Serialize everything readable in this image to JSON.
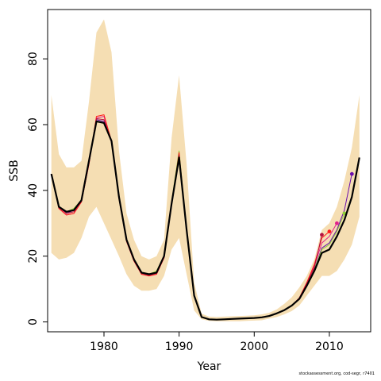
{
  "chart_data": {
    "type": "line",
    "xlabel": "Year",
    "ylabel": "SSB",
    "xlim": [
      1972.5,
      2015.5
    ],
    "ylim": [
      -3,
      95
    ],
    "xticks": [
      1980,
      1990,
      2000,
      2010
    ],
    "yticks": [
      0,
      20,
      40,
      60,
      80
    ],
    "band_color": "#f5deb3",
    "band": {
      "x": [
        1973,
        1974,
        1975,
        1976,
        1977,
        1978,
        1979,
        1980,
        1981,
        1982,
        1983,
        1984,
        1985,
        1986,
        1987,
        1988,
        1989,
        1990,
        1991,
        1992,
        1993,
        1994,
        1995,
        1996,
        1997,
        1998,
        1999,
        2000,
        2001,
        2002,
        2003,
        2004,
        2005,
        2006,
        2007,
        2008,
        2009,
        2010,
        2011,
        2012,
        2013,
        2014
      ],
      "upper": [
        69,
        51,
        47,
        47,
        49,
        67,
        88,
        92,
        82,
        52,
        33,
        25,
        20,
        19,
        20,
        25,
        56,
        75,
        48,
        12,
        2.5,
        1.6,
        1.5,
        1.6,
        1.7,
        1.8,
        1.9,
        2.0,
        2.3,
        2.8,
        3.8,
        5.5,
        7.5,
        10.5,
        14,
        19,
        28,
        30,
        35,
        43,
        53,
        69
      ],
      "lower": [
        21,
        19,
        19.5,
        21,
        25.5,
        32,
        35,
        30,
        25,
        20,
        14.5,
        11,
        9.5,
        9.5,
        10,
        14,
        22,
        25.5,
        14.5,
        3.5,
        0.8,
        0.3,
        0.2,
        0.2,
        0.2,
        0.2,
        0.3,
        0.4,
        0.5,
        1.0,
        1.5,
        2.3,
        3.3,
        5,
        8,
        11,
        14,
        14,
        15.5,
        19,
        23.5,
        32
      ]
    },
    "series": [
      {
        "color": "#000000",
        "width": 2.2,
        "dot": false,
        "x": [
          1973,
          1974,
          1975,
          1976,
          1977,
          1978,
          1979,
          1980,
          1981,
          1982,
          1983,
          1984,
          1985,
          1986,
          1987,
          1988,
          1989,
          1990,
          1991,
          1992,
          1993,
          1994,
          1995,
          1996,
          1997,
          1998,
          1999,
          2000,
          2001,
          2002,
          2003,
          2004,
          2005,
          2006,
          2007,
          2008,
          2009,
          2010,
          2011,
          2012,
          2013,
          2014
        ],
        "y": [
          45,
          35,
          33.5,
          34,
          37,
          49,
          61,
          60.5,
          55,
          38,
          25,
          19,
          15,
          14.5,
          15,
          20,
          36,
          50,
          28,
          8,
          1.5,
          0.8,
          0.7,
          0.8,
          0.9,
          1.0,
          1.1,
          1.2,
          1.4,
          1.8,
          2.6,
          3.6,
          5.0,
          7.0,
          11,
          15.5,
          21,
          22,
          26,
          31,
          38,
          50
        ]
      },
      {
        "color": "#6a0dad",
        "width": 1,
        "dot": true,
        "x": [
          1973,
          1974,
          1975,
          1976,
          1977,
          1978,
          1979,
          1980,
          1981,
          1982,
          1983,
          1984,
          1985,
          1986,
          1987,
          1988,
          1989,
          1990,
          1991,
          1992,
          1993,
          1994,
          1995,
          1996,
          1997,
          1998,
          1999,
          2000,
          2001,
          2002,
          2003,
          2004,
          2005,
          2006,
          2007,
          2008,
          2009,
          2010,
          2011,
          2012,
          2013
        ],
        "y": [
          45,
          35,
          33,
          34,
          37,
          49,
          61.5,
          61,
          55,
          38,
          25,
          19,
          15,
          14.5,
          15,
          20,
          36,
          50.5,
          28,
          8,
          1.5,
          0.8,
          0.7,
          0.8,
          0.9,
          1.0,
          1.1,
          1.2,
          1.4,
          1.8,
          2.6,
          3.6,
          5.0,
          7.2,
          11.5,
          16,
          22.5,
          24,
          28,
          34,
          45
        ]
      },
      {
        "color": "#8fce3a",
        "width": 1,
        "dot": true,
        "x": [
          1973,
          1974,
          1975,
          1976,
          1977,
          1978,
          1979,
          1980,
          1981,
          1982,
          1983,
          1984,
          1985,
          1986,
          1987,
          1988,
          1989,
          1990,
          1991,
          1992,
          1993,
          1994,
          1995,
          1996,
          1997,
          1998,
          1999,
          2000,
          2001,
          2002,
          2003,
          2004,
          2005,
          2006,
          2007,
          2008,
          2009,
          2010,
          2011,
          2012
        ],
        "y": [
          45,
          35,
          33.5,
          34.5,
          37,
          49,
          61,
          60.5,
          55,
          38,
          25,
          19,
          15,
          14.5,
          15.5,
          20,
          36.5,
          52,
          28,
          8,
          1.5,
          0.8,
          0.7,
          0.8,
          0.9,
          1.0,
          1.1,
          1.2,
          1.4,
          1.8,
          2.6,
          3.6,
          5.0,
          7.2,
          11.5,
          16,
          22,
          23.5,
          27.5,
          33
        ]
      },
      {
        "color": "#e0218a",
        "width": 1,
        "dot": true,
        "x": [
          1973,
          1974,
          1975,
          1976,
          1977,
          1978,
          1979,
          1980,
          1981,
          1982,
          1983,
          1984,
          1985,
          1986,
          1987,
          1988,
          1989,
          1990,
          1991,
          1992,
          1993,
          1994,
          1995,
          1996,
          1997,
          1998,
          1999,
          2000,
          2001,
          2002,
          2003,
          2004,
          2005,
          2006,
          2007,
          2008,
          2009,
          2010,
          2011
        ],
        "y": [
          45,
          34.5,
          32.5,
          33,
          36.5,
          48,
          62,
          62.5,
          54.5,
          37.5,
          24.5,
          18.5,
          14.5,
          14,
          14.5,
          19.5,
          35.5,
          51,
          27.5,
          8,
          1.5,
          0.8,
          0.7,
          0.8,
          0.9,
          1.0,
          1.1,
          1.2,
          1.4,
          1.8,
          2.6,
          3.6,
          5.0,
          7.3,
          11.8,
          17,
          24,
          26,
          30
        ]
      },
      {
        "color": "#ff1a1a",
        "width": 1,
        "dot": true,
        "x": [
          1973,
          1974,
          1975,
          1976,
          1977,
          1978,
          1979,
          1980,
          1981,
          1982,
          1983,
          1984,
          1985,
          1986,
          1987,
          1988,
          1989,
          1990,
          1991,
          1992,
          1993,
          1994,
          1995,
          1996,
          1997,
          1998,
          1999,
          2000,
          2001,
          2002,
          2003,
          2004,
          2005,
          2006,
          2007,
          2008,
          2009,
          2010
        ],
        "y": [
          45,
          34.5,
          32.5,
          33,
          36.5,
          48,
          62.5,
          63,
          55,
          37.5,
          24.5,
          18.5,
          14.5,
          14,
          14.5,
          19.5,
          35.5,
          51.5,
          27.5,
          8,
          1.5,
          0.8,
          0.7,
          0.8,
          0.9,
          1.0,
          1.1,
          1.2,
          1.4,
          1.8,
          2.6,
          3.6,
          5.0,
          7.3,
          12,
          17.5,
          25.5,
          27.5
        ]
      },
      {
        "color": "#b5123f",
        "width": 1,
        "dot": true,
        "x": [
          1973,
          1974,
          1975,
          1976,
          1977,
          1978,
          1979,
          1980,
          1981,
          1982,
          1983,
          1984,
          1985,
          1986,
          1987,
          1988,
          1989,
          1990,
          1991,
          1992,
          1993,
          1994,
          1995,
          1996,
          1997,
          1998,
          1999,
          2000,
          2001,
          2002,
          2003,
          2004,
          2005,
          2006,
          2007,
          2008,
          2009
        ],
        "y": [
          45,
          34.8,
          33,
          33.5,
          36.8,
          48.5,
          61.8,
          61.5,
          54.8,
          37.8,
          24.8,
          18.8,
          14.8,
          14.2,
          14.8,
          19.8,
          35.8,
          50.8,
          27.8,
          8,
          1.5,
          0.8,
          0.7,
          0.8,
          0.9,
          1.0,
          1.1,
          1.2,
          1.4,
          1.8,
          2.6,
          3.6,
          5.0,
          7.2,
          11.6,
          16.5,
          26.5
        ]
      }
    ]
  },
  "footnote": "stockassessment.org, cod-segr, r7401"
}
